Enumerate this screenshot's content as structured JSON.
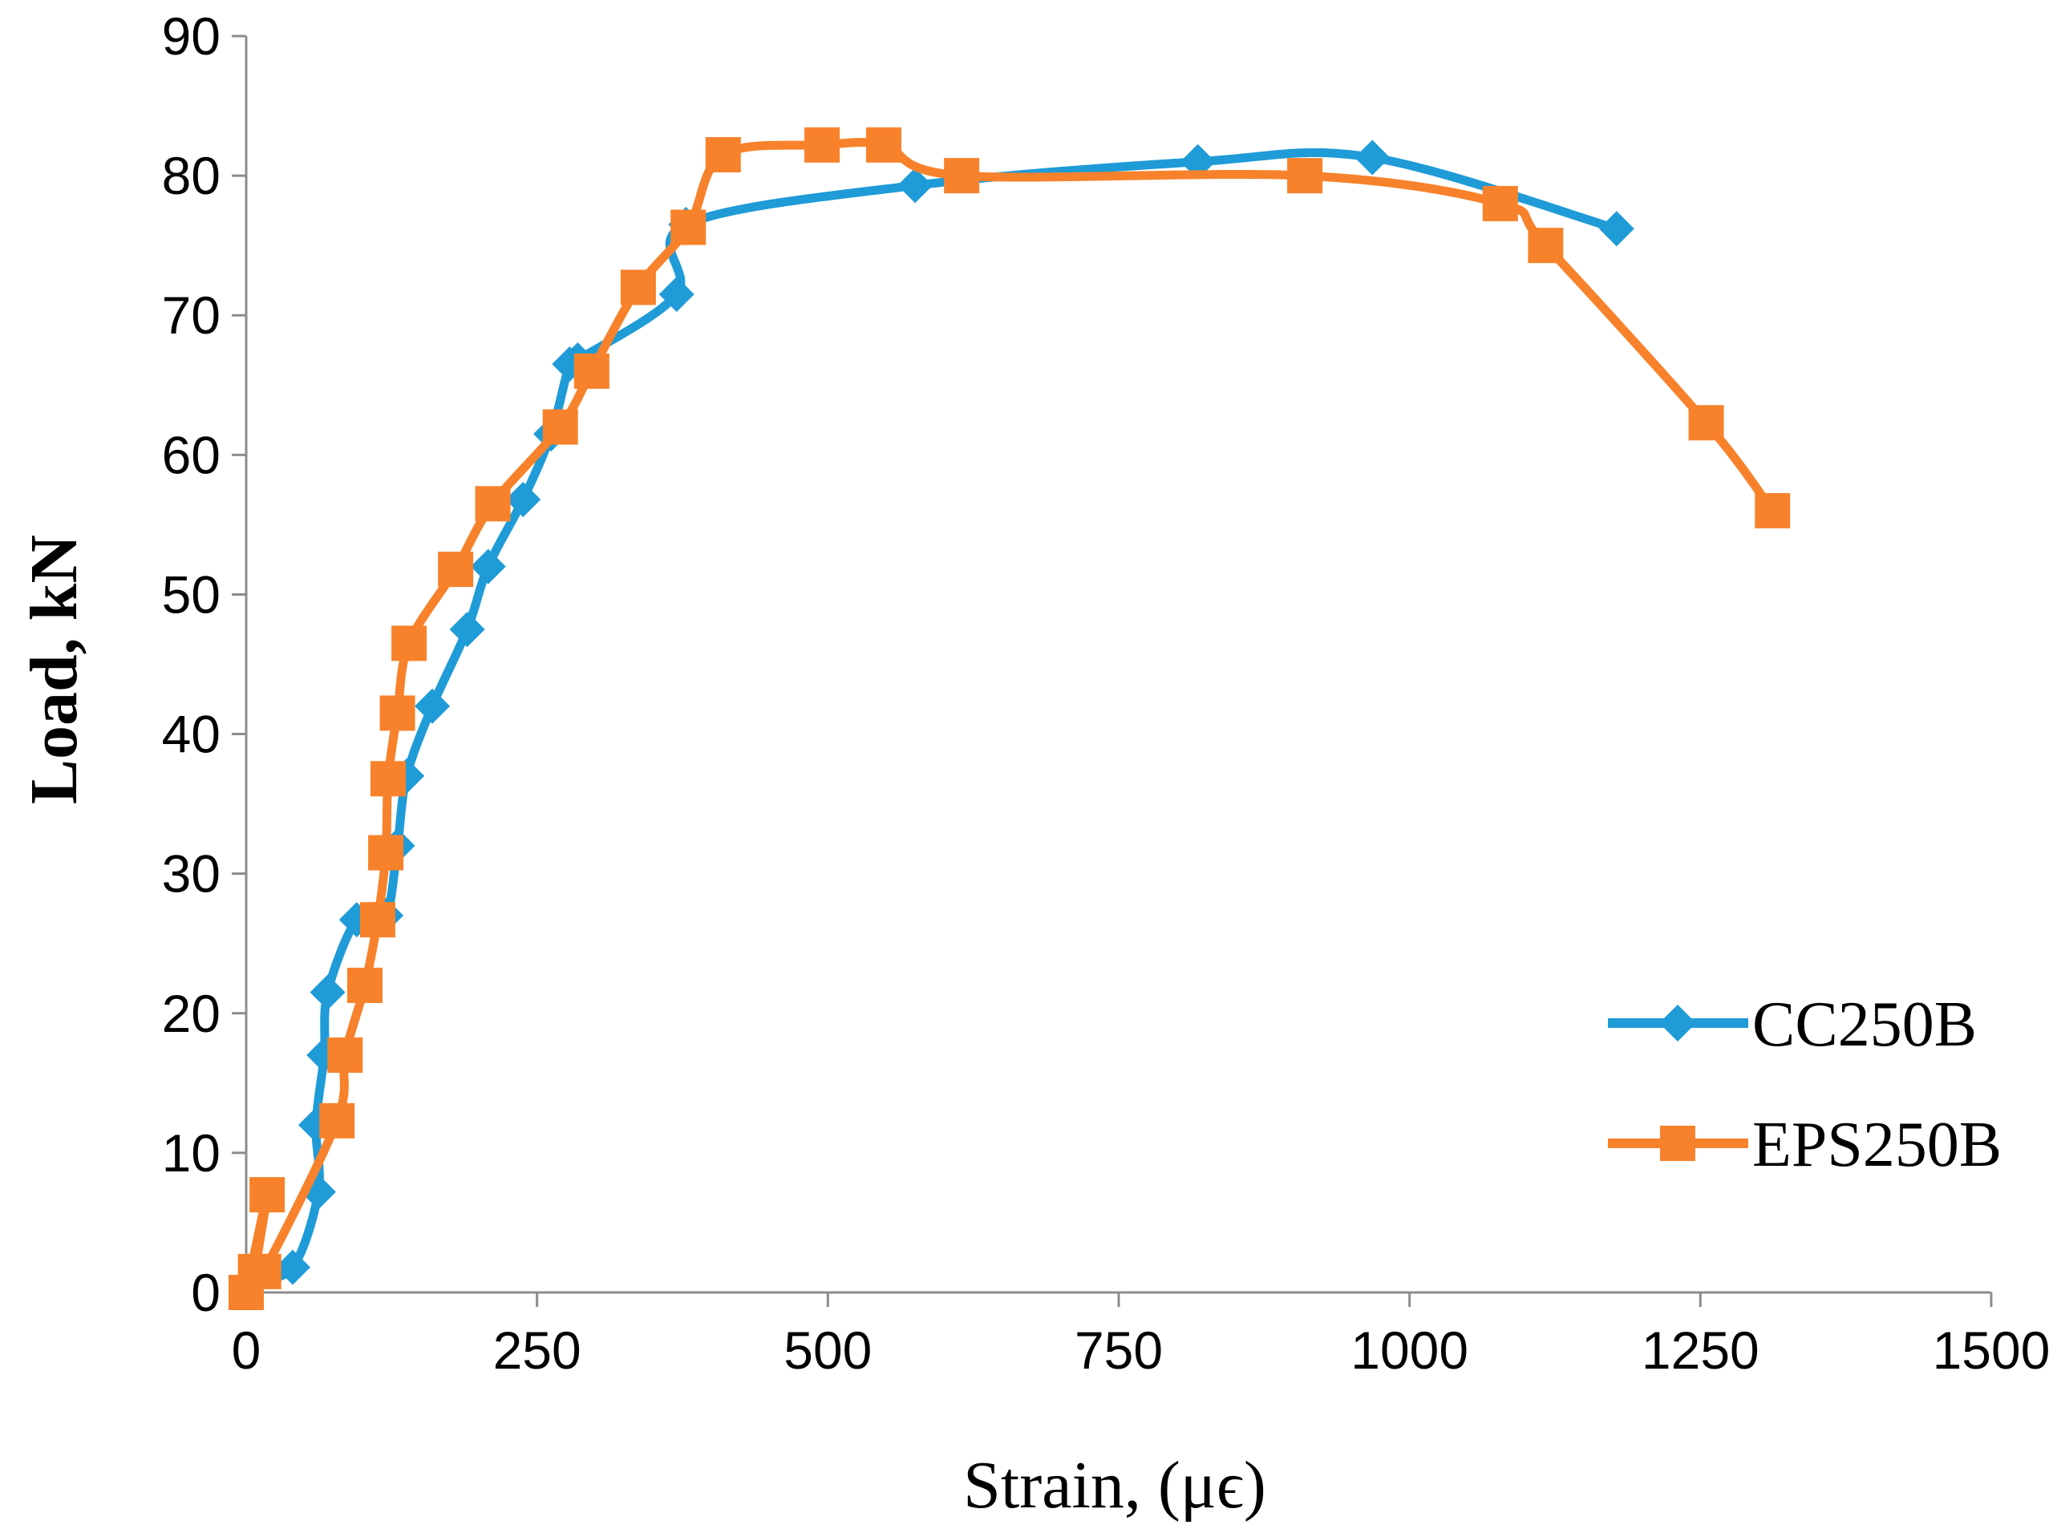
{
  "chart_data": {
    "type": "line",
    "title": "",
    "xlabel": "Strain, (μϵ)",
    "ylabel": "Load, kN",
    "xlim": [
      0,
      1500
    ],
    "ylim": [
      0,
      90
    ],
    "xticks": [
      "0",
      "250",
      "500",
      "750",
      "1000",
      "1250",
      "1500"
    ],
    "yticks": [
      "0",
      "10",
      "20",
      "30",
      "40",
      "50",
      "60",
      "70",
      "80",
      "90"
    ],
    "grid": false,
    "legend_position": "bottom-right",
    "series": [
      {
        "name": "CC250B",
        "color": "#1F9BD7",
        "marker": "diamond",
        "x": [
          0,
          5,
          40,
          62,
          60,
          67,
          70,
          95,
          120,
          130,
          138,
          160,
          190,
          208,
          238,
          262,
          278,
          285,
          370,
          378,
          575,
          818,
          968,
          1178
        ],
        "y": [
          0,
          0.8,
          1.8,
          7.2,
          12,
          17,
          21.5,
          26.7,
          27,
          32,
          37,
          42,
          47.5,
          52,
          56.8,
          61.5,
          66.5,
          66.8,
          71.5,
          76.5,
          79.3,
          81,
          81.3,
          76.2
        ]
      },
      {
        "name": "EPS250B",
        "color": "#F7822B",
        "marker": "square",
        "x": [
          0,
          18,
          8,
          15,
          78,
          85,
          102,
          113,
          120,
          122,
          130,
          140,
          180,
          212,
          270,
          297,
          337,
          380,
          410,
          495,
          548,
          615,
          910,
          1078,
          1117,
          1255,
          1312
        ],
        "y": [
          0,
          7,
          1.5,
          1.5,
          12.3,
          17,
          22,
          26.7,
          31.5,
          36.8,
          41.5,
          46.5,
          51.8,
          56.5,
          62,
          66,
          72,
          76.3,
          81.5,
          82.2,
          82.2,
          80,
          80,
          78,
          75,
          62.3,
          56
        ]
      }
    ]
  }
}
